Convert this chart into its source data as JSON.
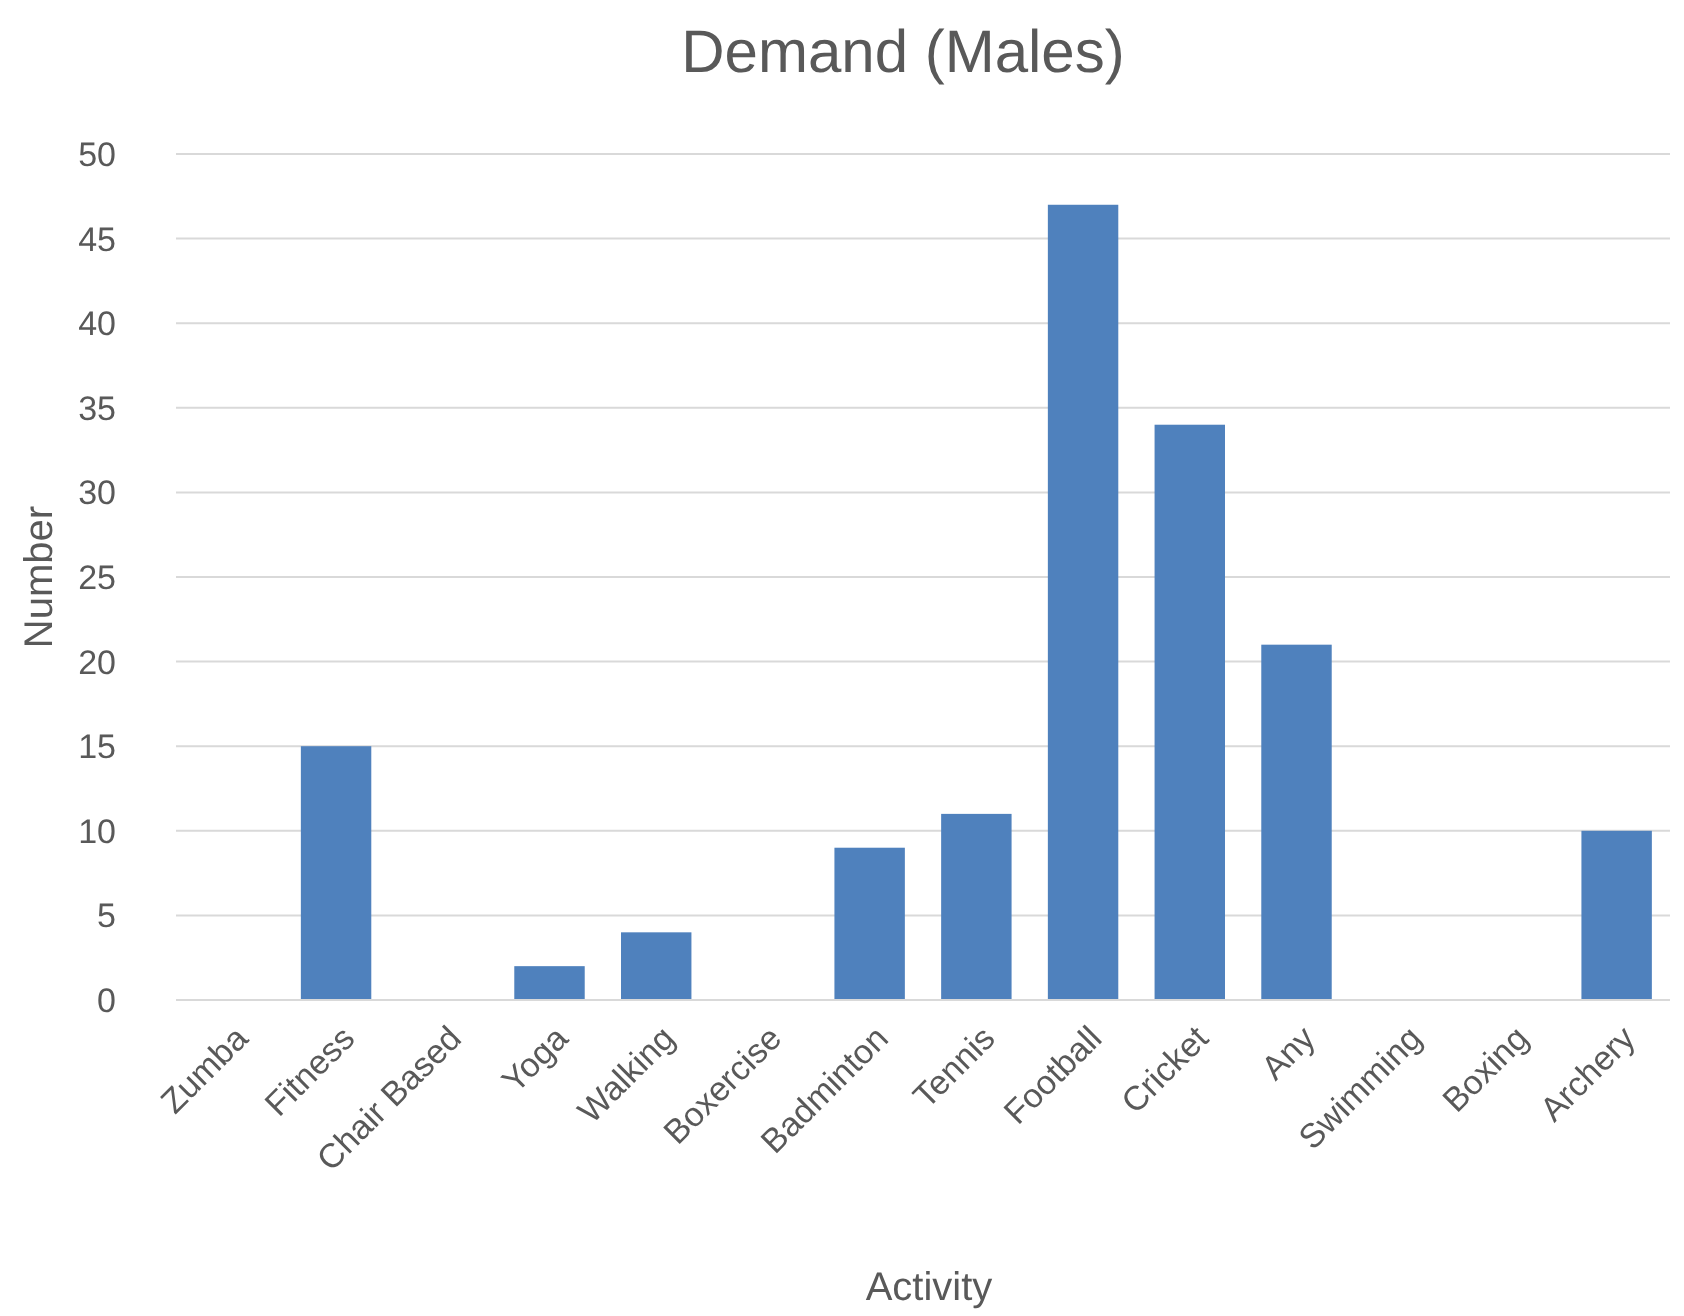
{
  "chart_data": {
    "type": "bar",
    "title": "Demand (Males)",
    "xlabel": "Activity",
    "ylabel": "Number",
    "categories": [
      "Zumba",
      "Fitness",
      "Chair Based",
      "Yoga",
      "Walking",
      "Boxercise",
      "Badminton",
      "Tennis",
      "Football",
      "Cricket",
      "Any",
      "Swimming",
      "Boxing",
      "Archery"
    ],
    "values": [
      0,
      15,
      0,
      2,
      4,
      0,
      9,
      11,
      47,
      34,
      21,
      0,
      0,
      10
    ],
    "color": "#4f81bd",
    "ylim": [
      0,
      50
    ],
    "yticks": [
      0,
      5,
      10,
      15,
      20,
      25,
      30,
      35,
      40,
      45,
      50
    ],
    "grid": "y"
  }
}
